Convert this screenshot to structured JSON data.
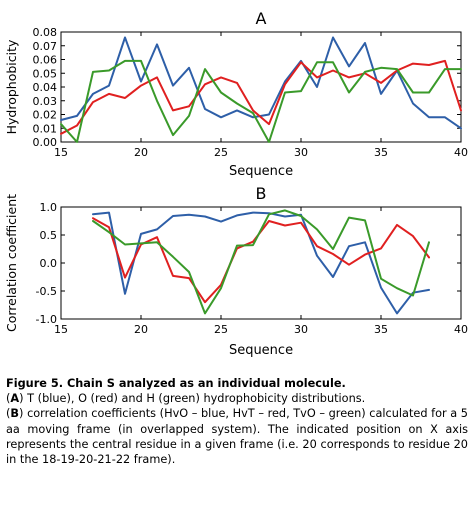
{
  "chart_data": [
    {
      "type": "line",
      "panel_letter": "A",
      "xlabel": "Sequence",
      "ylabel": "Hydrophobicity",
      "xlim": [
        15,
        40
      ],
      "ylim": [
        0,
        0.08
      ],
      "xticks": [
        15,
        20,
        25,
        30,
        35,
        40
      ],
      "yticks": [
        "0.00",
        "0.01",
        "0.02",
        "0.03",
        "0.04",
        "0.05",
        "0.06",
        "0.07",
        "0.08"
      ],
      "grid": false,
      "x": [
        15,
        16,
        17,
        18,
        19,
        20,
        21,
        22,
        23,
        24,
        25,
        26,
        27,
        28,
        29,
        30,
        31,
        32,
        33,
        34,
        35,
        36,
        37,
        38,
        39,
        40
      ],
      "series": [
        {
          "color": "#2E5FA8",
          "values": [
            0.016,
            0.019,
            0.035,
            0.041,
            0.076,
            0.044,
            0.071,
            0.041,
            0.054,
            0.024,
            0.018,
            0.023,
            0.018,
            0.02,
            0.044,
            0.059,
            0.04,
            0.076,
            0.055,
            0.072,
            0.035,
            0.052,
            0.028,
            0.018,
            0.018,
            0.01
          ]
        },
        {
          "color": "#E02020",
          "values": [
            0.006,
            0.012,
            0.029,
            0.035,
            0.032,
            0.041,
            0.047,
            0.023,
            0.026,
            0.042,
            0.047,
            0.043,
            0.023,
            0.013,
            0.042,
            0.058,
            0.047,
            0.052,
            0.047,
            0.05,
            0.043,
            0.052,
            0.057,
            0.056,
            0.059,
            0.023
          ]
        },
        {
          "color": "#3A9A2A",
          "values": [
            0.013,
            0.0,
            0.051,
            0.052,
            0.059,
            0.059,
            0.03,
            0.005,
            0.019,
            0.053,
            0.036,
            0.028,
            0.021,
            0.0,
            0.036,
            0.037,
            0.058,
            0.058,
            0.036,
            0.051,
            0.054,
            0.053,
            0.036,
            0.036,
            0.053,
            0.053
          ]
        }
      ]
    },
    {
      "type": "line",
      "panel_letter": "B",
      "xlabel": "Sequence",
      "ylabel": "Correlation coefficient",
      "xlim": [
        15,
        40
      ],
      "ylim": [
        -1.0,
        1.0
      ],
      "xticks": [
        15,
        20,
        25,
        30,
        35,
        40
      ],
      "yticks": [
        "-1.0",
        "-0.5",
        "0.0",
        "0.5",
        "1.0"
      ],
      "grid": false,
      "x": [
        17,
        18,
        19,
        20,
        21,
        22,
        23,
        24,
        25,
        26,
        27,
        28,
        29,
        30,
        31,
        32,
        33,
        34,
        35,
        36,
        37,
        38
      ],
      "series": [
        {
          "color": "#2E5FA8",
          "values": [
            0.87,
            0.9,
            -0.55,
            0.52,
            0.6,
            0.84,
            0.86,
            0.83,
            0.74,
            0.85,
            0.9,
            0.89,
            0.83,
            0.86,
            0.13,
            -0.25,
            0.3,
            0.37,
            -0.44,
            -0.9,
            -0.53,
            -0.48
          ]
        },
        {
          "color": "#E02020",
          "values": [
            0.8,
            0.64,
            -0.26,
            0.33,
            0.46,
            -0.23,
            -0.27,
            -0.7,
            -0.39,
            0.26,
            0.38,
            0.75,
            0.67,
            0.72,
            0.3,
            0.16,
            -0.03,
            0.15,
            0.26,
            0.68,
            0.48,
            0.1
          ]
        },
        {
          "color": "#3A9A2A",
          "values": [
            0.75,
            0.55,
            0.33,
            0.35,
            0.37,
            0.11,
            -0.16,
            -0.9,
            -0.45,
            0.31,
            0.32,
            0.87,
            0.94,
            0.84,
            0.6,
            0.25,
            0.81,
            0.76,
            -0.28,
            -0.45,
            -0.58,
            0.37
          ]
        }
      ]
    }
  ],
  "caption": {
    "title": "Figure 5. Chain S analyzed as an individual molecule.",
    "partA_letter": "A",
    "partA_text": "T (blue), O (red) and H (green) hydrophobicity distributions.",
    "partB_letter": "B",
    "partB_text": "correlation coefficients (HvO – blue, HvT – red, TvO – green) calculated for a 5 aa moving frame (in overlapped system). The indicated position on X axis represents the central residue in a given frame (i.e. 20 corresponds to residue 20 in the 18-19-20-21-22 frame)."
  }
}
